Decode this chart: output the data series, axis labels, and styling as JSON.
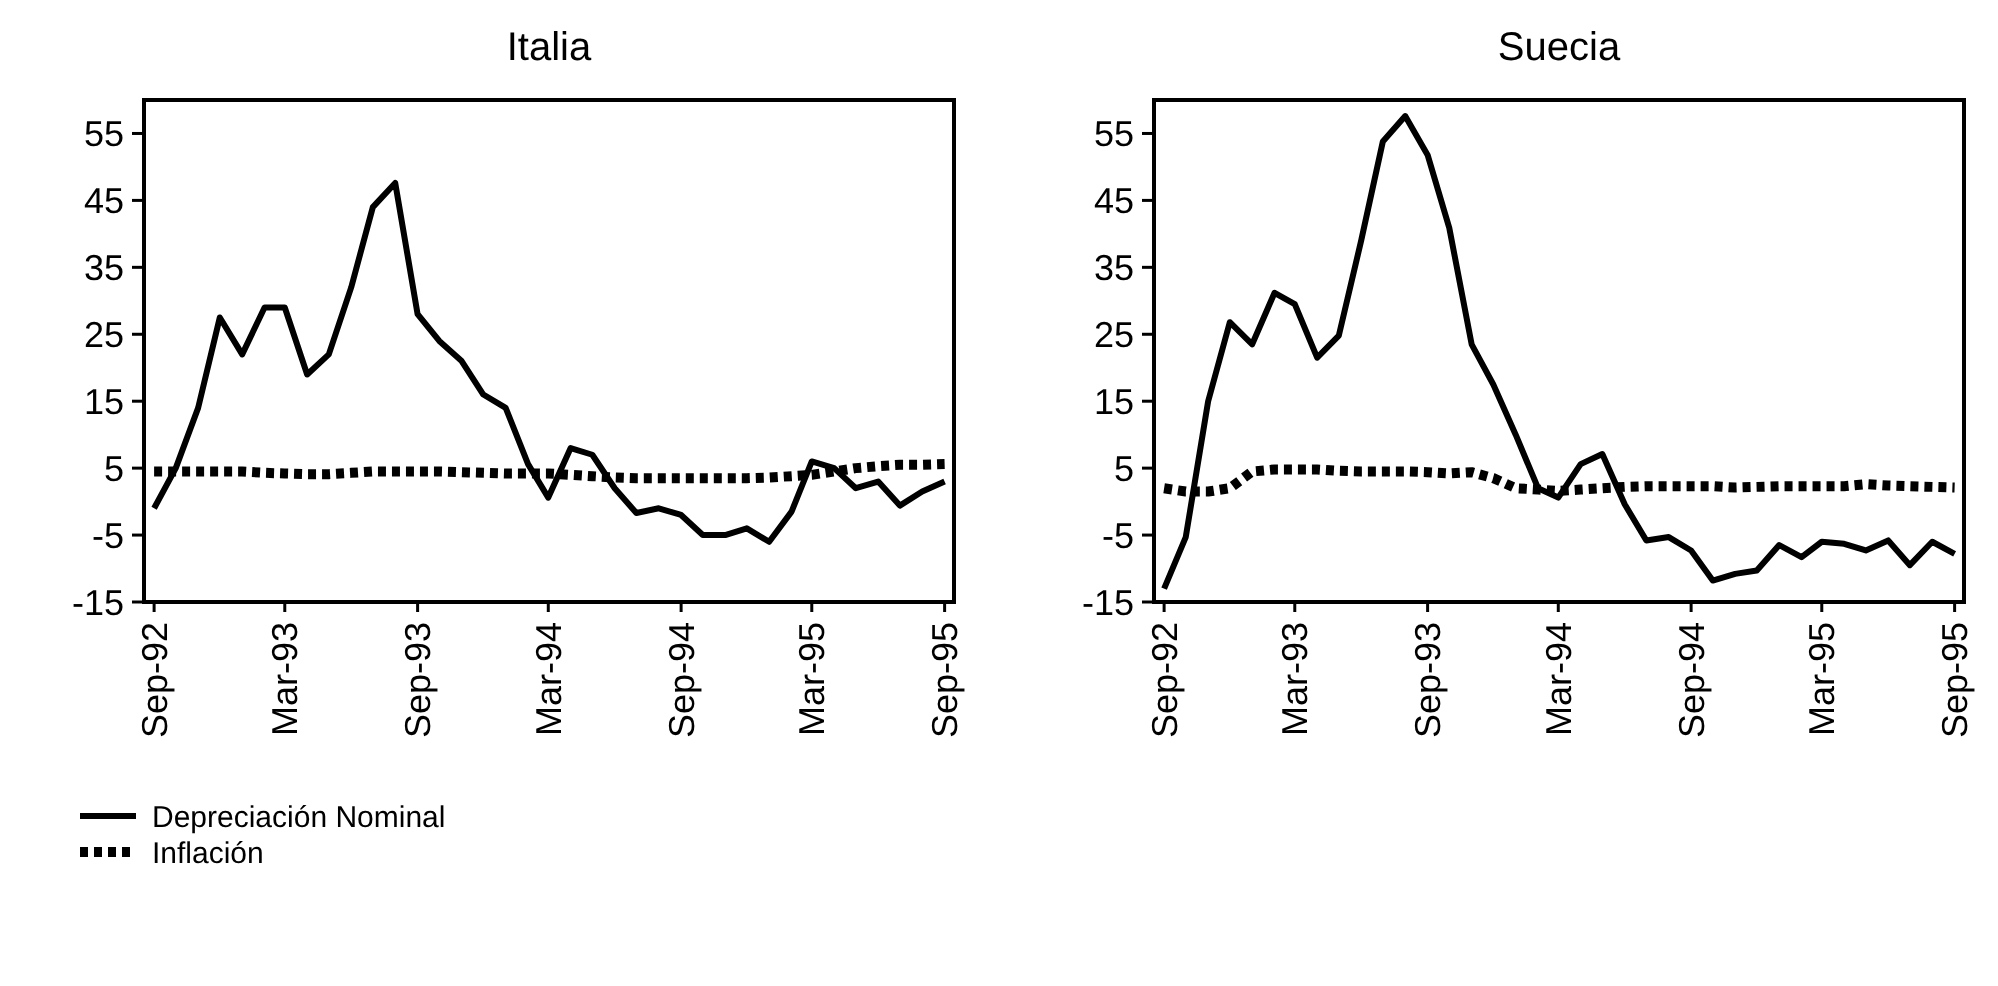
{
  "chart_data": [
    {
      "type": "line",
      "title": "Italia",
      "x": [
        "1992-09",
        "1992-10",
        "1992-11",
        "1992-12",
        "1993-01",
        "1993-02",
        "1993-03",
        "1993-04",
        "1993-05",
        "1993-06",
        "1993-07",
        "1993-08",
        "1993-09",
        "1993-10",
        "1993-11",
        "1993-12",
        "1994-01",
        "1994-02",
        "1994-03",
        "1994-04",
        "1994-05",
        "1994-06",
        "1994-07",
        "1994-08",
        "1994-09",
        "1994-10",
        "1994-11",
        "1994-12",
        "1995-01",
        "1995-02",
        "1995-03",
        "1995-04",
        "1995-05",
        "1995-06",
        "1995-07",
        "1995-08",
        "1995-09"
      ],
      "series": [
        {
          "name": "Depreciación Nominal",
          "color": "#000000",
          "line_style": "solid",
          "values": [
            -1,
            5,
            14,
            27.5,
            22,
            29,
            29,
            19,
            22,
            32,
            44,
            47.6,
            28,
            24,
            21,
            16,
            14,
            5.6,
            0.6,
            8,
            7,
            2,
            -1.7,
            -1,
            -2,
            -5,
            -5,
            -4,
            -6,
            -1.5,
            6,
            5,
            2,
            3,
            -0.6,
            1.5,
            3
          ]
        },
        {
          "name": "Inflación",
          "color": "#000000",
          "line_style": "dotted",
          "values": [
            4.5,
            4.5,
            4.5,
            4.5,
            4.5,
            4.3,
            4.2,
            4.1,
            4.1,
            4.3,
            4.5,
            4.5,
            4.5,
            4.5,
            4.4,
            4.3,
            4.2,
            4.2,
            4.2,
            4,
            3.8,
            3.6,
            3.5,
            3.5,
            3.5,
            3.5,
            3.5,
            3.5,
            3.6,
            3.8,
            4,
            4.5,
            5,
            5.3,
            5.5,
            5.5,
            5.6
          ]
        }
      ],
      "xlim": [
        "1992-08-18",
        "1995-09-14"
      ],
      "xticks": [
        {
          "value": "1992-09",
          "label": "Sep-92"
        },
        {
          "value": "1993-03",
          "label": "Mar-93"
        },
        {
          "value": "1993-09",
          "label": "Sep-93"
        },
        {
          "value": "1994-03",
          "label": "Mar-94"
        },
        {
          "value": "1994-09",
          "label": "Sep-94"
        },
        {
          "value": "1995-03",
          "label": "Mar-95"
        },
        {
          "value": "1995-09",
          "label": "Sep-95"
        }
      ],
      "ylim": [
        -15,
        60
      ],
      "yticks": [
        -15,
        -5,
        5,
        15,
        25,
        35,
        45,
        55
      ],
      "grid": false,
      "legend": "bottom left"
    },
    {
      "type": "line",
      "title": "Suecia",
      "x": [
        "1992-09",
        "1992-10",
        "1992-11",
        "1992-12",
        "1993-01",
        "1993-02",
        "1993-03",
        "1993-04",
        "1993-05",
        "1993-06",
        "1993-07",
        "1993-08",
        "1993-09",
        "1993-10",
        "1993-11",
        "1993-12",
        "1994-01",
        "1994-02",
        "1994-03",
        "1994-04",
        "1994-05",
        "1994-06",
        "1994-07",
        "1994-08",
        "1994-09",
        "1994-10",
        "1994-11",
        "1994-12",
        "1995-01",
        "1995-02",
        "1995-03",
        "1995-04",
        "1995-05",
        "1995-06",
        "1995-07",
        "1995-08",
        "1995-09"
      ],
      "series": [
        {
          "color": "#000000",
          "line_style": "solid",
          "values": [
            -13,
            -5.3,
            15,
            26.8,
            23.5,
            31.2,
            29.5,
            21.5,
            24.8,
            39,
            53.8,
            57.6,
            51.8,
            40.9,
            23.5,
            17.5,
            10,
            2,
            0.6,
            5.6,
            7.1,
            -0.4,
            -5.8,
            -5.3,
            -7.3,
            -11.8,
            -10.8,
            -10.3,
            -6.5,
            -8.3,
            -6,
            -6.3,
            -7.3,
            -5.8,
            -9.5,
            -6,
            -7.8
          ]
        },
        {
          "color": "#000000",
          "line_style": "dotted",
          "values": [
            2,
            1.5,
            1.5,
            2,
            4.5,
            4.8,
            4.8,
            4.8,
            4.6,
            4.5,
            4.5,
            4.5,
            4.4,
            4.2,
            4.4,
            3.5,
            2,
            1.8,
            1.6,
            1.8,
            2,
            2.2,
            2.3,
            2.3,
            2.3,
            2.3,
            2.1,
            2.2,
            2.3,
            2.3,
            2.3,
            2.3,
            2.6,
            2.4,
            2.3,
            2.2,
            2.1
          ]
        }
      ],
      "xlim": [
        "1992-08-18",
        "1995-09-14"
      ],
      "xticks": [
        {
          "value": "1992-09",
          "label": "Sep-92"
        },
        {
          "value": "1993-03",
          "label": "Mar-93"
        },
        {
          "value": "1993-09",
          "label": "Sep-93"
        },
        {
          "value": "1994-03",
          "label": "Mar-94"
        },
        {
          "value": "1994-09",
          "label": "Sep-94"
        },
        {
          "value": "1995-03",
          "label": "Mar-95"
        },
        {
          "value": "1995-09",
          "label": "Sep-95"
        }
      ],
      "ylim": [
        -15,
        60
      ],
      "yticks": [
        -15,
        -5,
        5,
        15,
        25,
        35,
        45,
        55
      ],
      "grid": false
    }
  ]
}
